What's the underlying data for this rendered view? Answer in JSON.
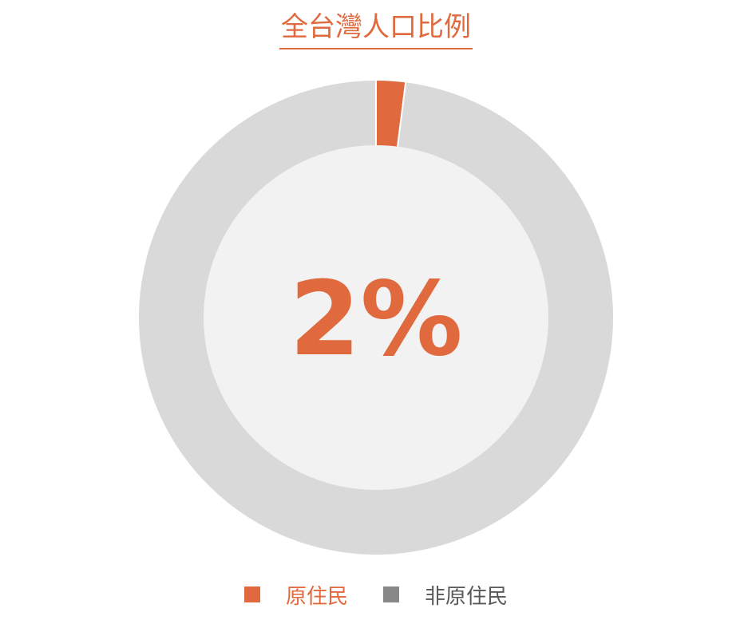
{
  "chart_data": {
    "type": "pie",
    "title": "全台灣人口比例",
    "center_label": "2%",
    "slices": [
      {
        "label": "原住民",
        "value": 2,
        "color": "#E0693D"
      },
      {
        "label": "非原住民",
        "value": 98,
        "color": "#D9D9D9"
      }
    ],
    "legend_colors": [
      "#E0693D",
      "#888888"
    ],
    "center_fill": "#F2F2F2",
    "legend_position": "bottom"
  },
  "colors": {
    "accent": "#E0693D",
    "title": "#E0693D",
    "legend_text_0": "#E0693D",
    "legend_text_1": "#595959"
  }
}
